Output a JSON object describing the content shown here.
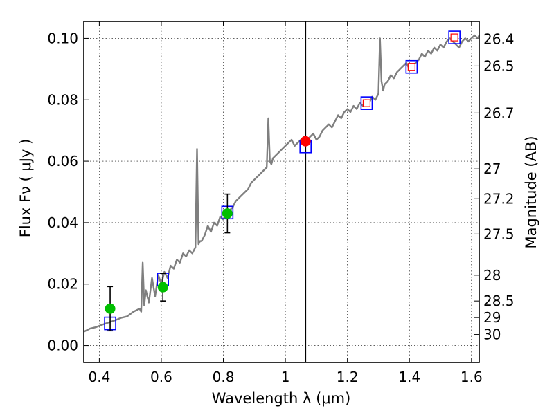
{
  "chart_data": {
    "type": "line",
    "xlabel": "Wavelength  λ (μm)",
    "ylabel": "Flux  Fν  ( μJy )",
    "y2label": "Magnitude (AB)",
    "xlim": [
      0.35,
      1.625
    ],
    "ylim": [
      -0.0055,
      0.1055
    ],
    "grid": true,
    "xticks": [
      0.4,
      0.6,
      0.8,
      1.0,
      1.2,
      1.4,
      1.6
    ],
    "xtick_labels": [
      "0.4",
      "0.6",
      "0.8",
      "1",
      "1.2",
      "1.4",
      "1.6"
    ],
    "yticks": [
      0.0,
      0.02,
      0.04,
      0.06,
      0.08,
      0.1
    ],
    "ytick_labels": [
      "0.00",
      "0.02",
      "0.04",
      "0.06",
      "0.08",
      "0.10"
    ],
    "mag_ticks": [
      {
        "label": "26.4",
        "flux": 0.0998
      },
      {
        "label": "26.5",
        "flux": 0.091
      },
      {
        "label": "26.7",
        "flux": 0.0757
      },
      {
        "label": "27",
        "flux": 0.0575
      },
      {
        "label": "27.2",
        "flux": 0.0478
      },
      {
        "label": "27.5",
        "flux": 0.0363
      },
      {
        "label": "28",
        "flux": 0.0229
      },
      {
        "label": "28.5",
        "flux": 0.0145
      },
      {
        "label": "29",
        "flux": 0.0091
      },
      {
        "label": "30",
        "flux": 0.0036
      }
    ],
    "vline_x": 1.065,
    "colors": {
      "spectrum": "#7f7f7f",
      "model_box": "#0000ff",
      "observed": "#00bf00",
      "red_marker": "#ff0000",
      "errorbar": "#000000",
      "vline": "#000000"
    },
    "spectrum": {
      "x": [
        0.35,
        0.37,
        0.39,
        0.41,
        0.43,
        0.45,
        0.47,
        0.49,
        0.51,
        0.53,
        0.535,
        0.54,
        0.545,
        0.55,
        0.56,
        0.57,
        0.58,
        0.59,
        0.6,
        0.61,
        0.62,
        0.63,
        0.64,
        0.65,
        0.66,
        0.67,
        0.68,
        0.69,
        0.7,
        0.71,
        0.715,
        0.72,
        0.725,
        0.73,
        0.74,
        0.75,
        0.76,
        0.77,
        0.78,
        0.79,
        0.8,
        0.81,
        0.82,
        0.83,
        0.84,
        0.85,
        0.86,
        0.87,
        0.88,
        0.89,
        0.9,
        0.91,
        0.92,
        0.93,
        0.94,
        0.945,
        0.95,
        0.955,
        0.96,
        0.97,
        0.98,
        0.99,
        1.0,
        1.01,
        1.02,
        1.03,
        1.04,
        1.05,
        1.06,
        1.07,
        1.08,
        1.09,
        1.1,
        1.11,
        1.12,
        1.13,
        1.14,
        1.15,
        1.16,
        1.17,
        1.18,
        1.19,
        1.2,
        1.21,
        1.22,
        1.23,
        1.24,
        1.25,
        1.26,
        1.27,
        1.28,
        1.29,
        1.3,
        1.305,
        1.31,
        1.315,
        1.32,
        1.33,
        1.34,
        1.35,
        1.36,
        1.37,
        1.38,
        1.39,
        1.4,
        1.41,
        1.42,
        1.43,
        1.44,
        1.45,
        1.46,
        1.47,
        1.48,
        1.49,
        1.5,
        1.51,
        1.52,
        1.53,
        1.54,
        1.55,
        1.56,
        1.57,
        1.58,
        1.59,
        1.6,
        1.61,
        1.62,
        1.625
      ],
      "y": [
        0.0045,
        0.0055,
        0.006,
        0.0068,
        0.0075,
        0.0082,
        0.009,
        0.0095,
        0.011,
        0.012,
        0.011,
        0.027,
        0.013,
        0.018,
        0.014,
        0.022,
        0.016,
        0.023,
        0.02,
        0.024,
        0.022,
        0.026,
        0.025,
        0.028,
        0.027,
        0.03,
        0.029,
        0.031,
        0.03,
        0.032,
        0.064,
        0.033,
        0.034,
        0.034,
        0.036,
        0.039,
        0.037,
        0.04,
        0.039,
        0.042,
        0.041,
        0.043,
        0.044,
        0.045,
        0.047,
        0.048,
        0.049,
        0.05,
        0.051,
        0.053,
        0.054,
        0.055,
        0.056,
        0.057,
        0.058,
        0.074,
        0.06,
        0.059,
        0.061,
        0.062,
        0.063,
        0.064,
        0.065,
        0.066,
        0.067,
        0.065,
        0.066,
        0.067,
        0.068,
        0.067,
        0.068,
        0.069,
        0.067,
        0.068,
        0.07,
        0.071,
        0.072,
        0.071,
        0.073,
        0.075,
        0.074,
        0.076,
        0.077,
        0.076,
        0.078,
        0.077,
        0.079,
        0.078,
        0.08,
        0.079,
        0.081,
        0.08,
        0.082,
        0.1,
        0.086,
        0.083,
        0.085,
        0.086,
        0.088,
        0.087,
        0.089,
        0.09,
        0.091,
        0.092,
        0.09,
        0.091,
        0.092,
        0.093,
        0.095,
        0.094,
        0.096,
        0.095,
        0.097,
        0.096,
        0.098,
        0.097,
        0.099,
        0.1,
        0.099,
        0.098,
        0.097,
        0.099,
        0.1,
        0.099,
        0.1,
        0.101,
        0.1,
        0.101
      ]
    },
    "model_points": [
      {
        "x": 0.435,
        "y": 0.0072
      },
      {
        "x": 0.605,
        "y": 0.0215
      },
      {
        "x": 0.813,
        "y": 0.0433
      },
      {
        "x": 1.065,
        "y": 0.0648
      },
      {
        "x": 1.262,
        "y": 0.0789
      },
      {
        "x": 1.407,
        "y": 0.0907
      },
      {
        "x": 1.545,
        "y": 0.1003
      }
    ],
    "observed_points": [
      {
        "x": 0.435,
        "y": 0.012,
        "err": 0.0072
      },
      {
        "x": 0.605,
        "y": 0.019,
        "err": 0.0045
      },
      {
        "x": 0.813,
        "y": 0.043,
        "err": 0.0063
      }
    ],
    "red_points": [
      {
        "x": 1.065,
        "y": 0.0665
      },
      {
        "x": 1.262,
        "y": 0.0789
      },
      {
        "x": 1.407,
        "y": 0.0907
      },
      {
        "x": 1.545,
        "y": 0.1003
      }
    ]
  }
}
